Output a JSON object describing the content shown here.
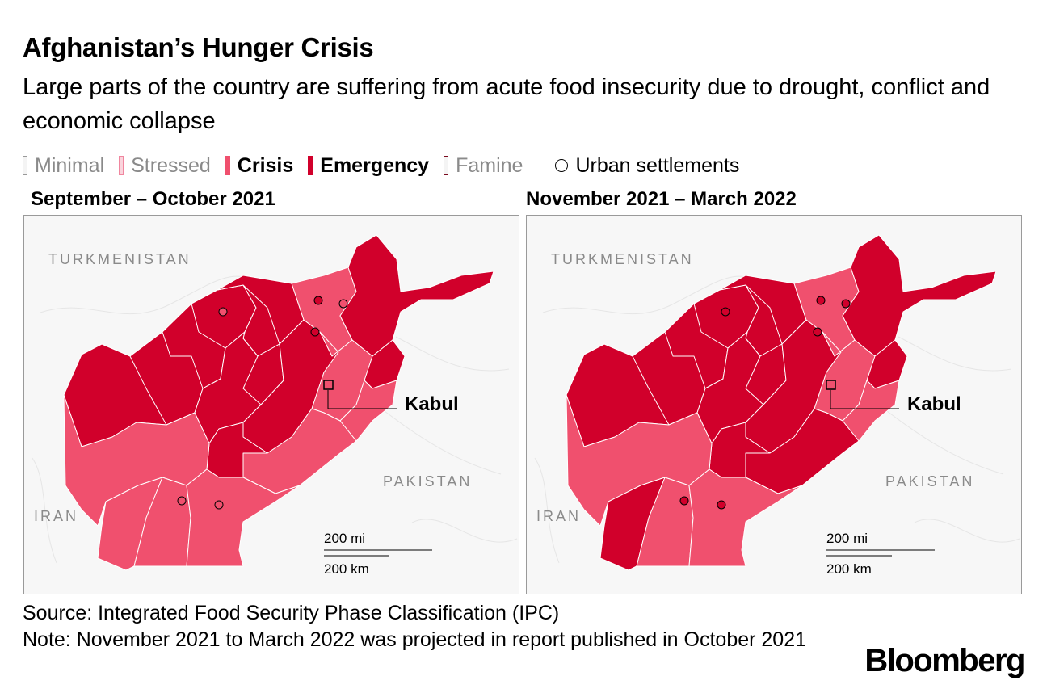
{
  "title": "Afghanistan’s Hunger Crisis",
  "subtitle": "Large parts of the country are suffering from acute food insecurity due to drought, conflict and economic collapse",
  "legend": {
    "items": [
      {
        "key": "minimal",
        "label": "Minimal",
        "color": "#f4f4f4",
        "border": "#999999",
        "text_color": "#8a8a8a",
        "bold": false
      },
      {
        "key": "stressed",
        "label": "Stressed",
        "color": "#fad4dc",
        "border": "#f0869f",
        "text_color": "#8a8a8a",
        "bold": false
      },
      {
        "key": "crisis",
        "label": "Crisis",
        "color": "#f0506e",
        "border": "#f0506e",
        "text_color": "#000000",
        "bold": true
      },
      {
        "key": "emergency",
        "label": "Emergency",
        "color": "#d1002b",
        "border": "#d1002b",
        "text_color": "#000000",
        "bold": true
      },
      {
        "key": "famine",
        "label": "Famine",
        "color": "#f4f4f4",
        "border": "#7a0a1e",
        "text_color": "#8a8a8a",
        "bold": false
      }
    ],
    "urban_label": "Urban settlements"
  },
  "maps": [
    {
      "title": "September – October 2021",
      "labels": {
        "turkmenistan": "TURKMENISTAN",
        "iran": "IRAN",
        "pakistan": "PAKISTAN",
        "kabul": "Kabul"
      },
      "scale": {
        "mi": "200 mi",
        "km": "200 km"
      }
    },
    {
      "title": "November 2021 – March 2022",
      "labels": {
        "turkmenistan": "TURKMENISTAN",
        "iran": "IRAN",
        "pakistan": "PAKISTAN",
        "kabul": "Kabul"
      },
      "scale": {
        "mi": "200 mi",
        "km": "200 km"
      }
    }
  ],
  "colors": {
    "crisis": "#f0506e",
    "emergency": "#d1002b",
    "background": "#f7f7f7",
    "text_grey": "#8a8a8a"
  },
  "source": "Source: Integrated Food Security Phase Classification (IPC)",
  "note": "Note: November 2021 to March 2022 was projected in report published in October 2021",
  "logo": "Bloomberg"
}
